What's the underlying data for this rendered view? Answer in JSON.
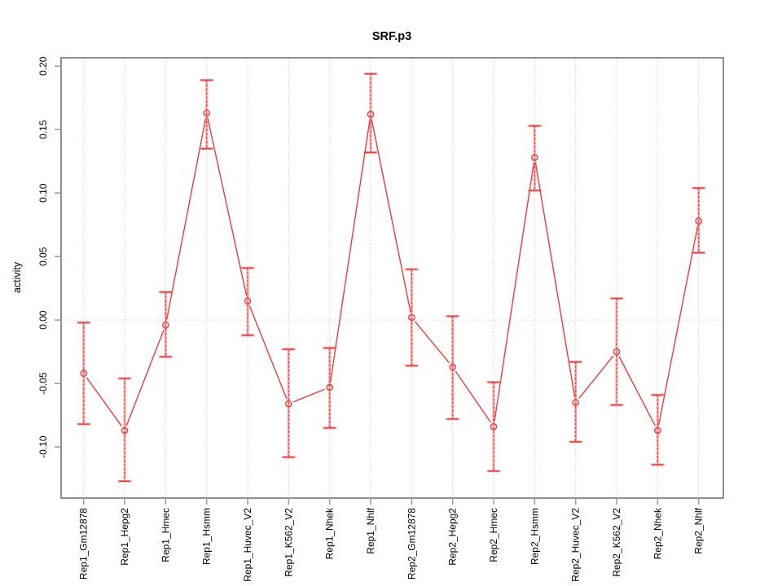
{
  "window": {
    "background": "#ffffff"
  },
  "chart_data": {
    "type": "line",
    "title": "SRF.p3",
    "xlabel": "",
    "ylabel": "activity",
    "legend": "none",
    "grid": "vertical dotted gridline at each category plus dotted horizontal line at y=0",
    "categories": [
      "Rep1_Gm12878",
      "Rep1_Hepg2",
      "Rep1_Hmec",
      "Rep1_Hsmm",
      "Rep1_Huvec_V2",
      "Rep1_K562_V2",
      "Rep1_Nhek",
      "Rep1_Nhlf",
      "Rep2_Gm12878",
      "Rep2_Hepg2",
      "Rep2_Hmec",
      "Rep2_Hsmm",
      "Rep2_Huvec_V2",
      "Rep2_K562_V2",
      "Rep2_Nhek",
      "Rep2_Nhlf"
    ],
    "series": [
      {
        "name": "activity",
        "marker": "open-circle",
        "values": [
          -0.042,
          -0.087,
          -0.004,
          0.163,
          0.015,
          -0.066,
          -0.053,
          0.162,
          0.002,
          -0.037,
          -0.084,
          0.128,
          -0.065,
          -0.025,
          -0.087,
          0.078
        ],
        "lower": [
          -0.082,
          -0.127,
          -0.029,
          0.135,
          -0.012,
          -0.108,
          -0.085,
          0.132,
          -0.036,
          -0.078,
          -0.119,
          0.102,
          -0.096,
          -0.067,
          -0.114,
          0.053
        ],
        "upper": [
          -0.002,
          -0.046,
          0.022,
          0.189,
          0.041,
          -0.023,
          -0.022,
          0.194,
          0.04,
          0.003,
          -0.049,
          0.153,
          -0.033,
          0.017,
          -0.059,
          0.104
        ]
      }
    ],
    "yticks": [
      0.2,
      0.15,
      0.1,
      0.05,
      0.0,
      -0.05,
      -0.1
    ],
    "ytick_labels": [
      "0.20",
      "0.15",
      "0.10",
      "0.05",
      "0.00",
      "-0.05",
      "-0.10"
    ],
    "ylim": [
      -0.1403,
      0.2066
    ]
  },
  "colors": {
    "series_red": "#ef3b3b",
    "errorbar_pink": "#f78f8f",
    "frame_gray": "#8f8f8f",
    "tick_gray": "#9e9e9e",
    "grid_gray": "#d0d0d0",
    "text_black": "#000000",
    "background": "#ffffff"
  }
}
